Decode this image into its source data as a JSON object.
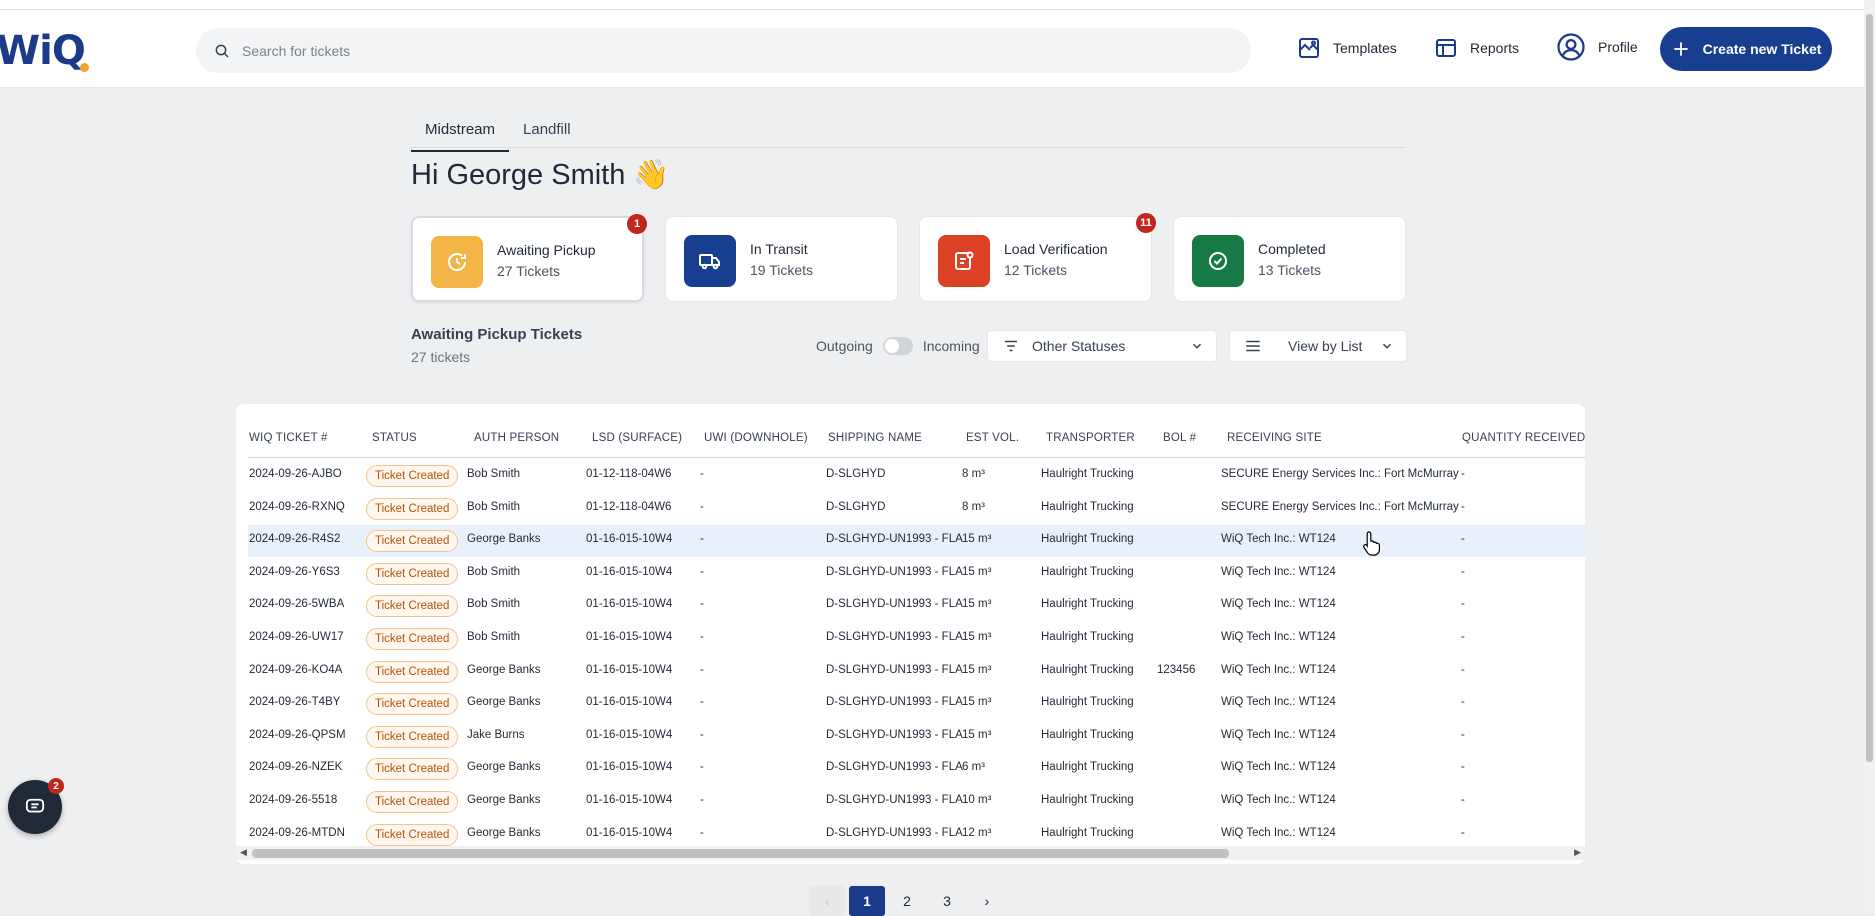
{
  "header": {
    "logo_text": "WiQ",
    "search_placeholder": "Search for tickets",
    "nav": {
      "templates": "Templates",
      "reports": "Reports",
      "profile": "Profile"
    },
    "create_button": "Create new Ticket"
  },
  "tabs": [
    {
      "label": "Midstream",
      "active": true
    },
    {
      "label": "Landfill",
      "active": false
    }
  ],
  "greeting": "Hi George Smith 👋",
  "status_cards": [
    {
      "title": "Awaiting Pickup",
      "count": "27 Tickets",
      "badge": "1",
      "color": "#f3b546"
    },
    {
      "title": "In Transit",
      "count": "19 Tickets",
      "badge": "",
      "color": "#173e8f"
    },
    {
      "title": "Load Verification",
      "count": "12 Tickets",
      "badge": "11",
      "color": "#dc4126"
    },
    {
      "title": "Completed",
      "count": "13 Tickets",
      "badge": "",
      "color": "#177a45"
    }
  ],
  "section": {
    "title": "Awaiting Pickup Tickets",
    "subtitle": "27 tickets",
    "toggle_left": "Outgoing",
    "toggle_right": "Incoming",
    "status_filter": "Other Statuses",
    "view_mode": "View by List"
  },
  "table": {
    "columns": [
      "WIQ TICKET #",
      "STATUS",
      "AUTH PERSON",
      "LSD (SURFACE)",
      "UWI (DOWNHOLE)",
      "SHIPPING NAME",
      "EST VOL.",
      "TRANSPORTER",
      "BOL #",
      "RECEIVING SITE",
      "QUANTITY RECEIVED"
    ],
    "rows": [
      [
        "2024-09-26-AJBO",
        "Ticket Created",
        "Bob Smith",
        "01-12-118-04W6",
        "-",
        "D-SLGHYD",
        "8 m³",
        "Haulright Trucking",
        "",
        "SECURE Energy Services Inc.: Fort McMurray",
        "-"
      ],
      [
        "2024-09-26-RXNQ",
        "Ticket Created",
        "Bob Smith",
        "01-12-118-04W6",
        "-",
        "D-SLGHYD",
        "8 m³",
        "Haulright Trucking",
        "",
        "SECURE Energy Services Inc.: Fort McMurray",
        "-"
      ],
      [
        "2024-09-26-R4S2",
        "Ticket Created",
        "George Banks",
        "01-16-015-10W4",
        "-",
        "D-SLGHYD-UN1993 - FLA",
        "15 m³",
        "Haulright Trucking",
        "",
        "WiQ Tech Inc.: WT124",
        "-"
      ],
      [
        "2024-09-26-Y6S3",
        "Ticket Created",
        "Bob Smith",
        "01-16-015-10W4",
        "-",
        "D-SLGHYD-UN1993 - FLA",
        "15 m³",
        "Haulright Trucking",
        "",
        "WiQ Tech Inc.: WT124",
        "-"
      ],
      [
        "2024-09-26-5WBA",
        "Ticket Created",
        "Bob Smith",
        "01-16-015-10W4",
        "-",
        "D-SLGHYD-UN1993 - FLA",
        "15 m³",
        "Haulright Trucking",
        "",
        "WiQ Tech Inc.: WT124",
        "-"
      ],
      [
        "2024-09-26-UW17",
        "Ticket Created",
        "Bob Smith",
        "01-16-015-10W4",
        "-",
        "D-SLGHYD-UN1993 - FLA",
        "15 m³",
        "Haulright Trucking",
        "",
        "WiQ Tech Inc.: WT124",
        "-"
      ],
      [
        "2024-09-26-KO4A",
        "Ticket Created",
        "George Banks",
        "01-16-015-10W4",
        "-",
        "D-SLGHYD-UN1993 - FLA",
        "15 m³",
        "Haulright Trucking",
        "123456",
        "WiQ Tech Inc.: WT124",
        "-"
      ],
      [
        "2024-09-26-T4BY",
        "Ticket Created",
        "George Banks",
        "01-16-015-10W4",
        "-",
        "D-SLGHYD-UN1993 - FLA",
        "15 m³",
        "Haulright Trucking",
        "",
        "WiQ Tech Inc.: WT124",
        "-"
      ],
      [
        "2024-09-26-QPSM",
        "Ticket Created",
        "Jake Burns",
        "01-16-015-10W4",
        "-",
        "D-SLGHYD-UN1993 - FLA",
        "15 m³",
        "Haulright Trucking",
        "",
        "WiQ Tech Inc.: WT124",
        "-"
      ],
      [
        "2024-09-26-NZEK",
        "Ticket Created",
        "George Banks",
        "01-16-015-10W4",
        "-",
        "D-SLGHYD-UN1993 - FLA",
        "6 m³",
        "Haulright Trucking",
        "",
        "WiQ Tech Inc.: WT124",
        "-"
      ],
      [
        "2024-09-26-5518",
        "Ticket Created",
        "George Banks",
        "01-16-015-10W4",
        "-",
        "D-SLGHYD-UN1993 - FLA",
        "10 m³",
        "Haulright Trucking",
        "",
        "WiQ Tech Inc.: WT124",
        "-"
      ],
      [
        "2024-09-26-MTDN",
        "Ticket Created",
        "George Banks",
        "01-16-015-10W4",
        "-",
        "D-SLGHYD-UN1993 - FLA",
        "12 m³",
        "Haulright Trucking",
        "",
        "WiQ Tech Inc.: WT124",
        "-"
      ]
    ],
    "highlighted_row": 2
  },
  "pagination": {
    "prev": "‹",
    "pages": [
      "1",
      "2",
      "3"
    ],
    "current": "1",
    "next": "›"
  },
  "chat": {
    "badge": "2"
  },
  "colors": {
    "primary": "#173e8f",
    "badge_red": "#c0281f",
    "pill_border": "#f3c48a",
    "pill_text": "#b45309",
    "row_highlight": "#e8f0fb"
  },
  "icons": {
    "search": "search-icon",
    "templates": "templates-icon",
    "reports": "reports-icon",
    "profile": "profile-icon",
    "create": "plus-icon",
    "awaiting": "clock-icon",
    "transit": "truck-icon",
    "verification": "clipboard-icon",
    "completed": "check-circle-icon",
    "filter": "filter-icon",
    "list": "list-icon",
    "chevron": "chevron-down-icon",
    "chat": "chat-icon"
  }
}
